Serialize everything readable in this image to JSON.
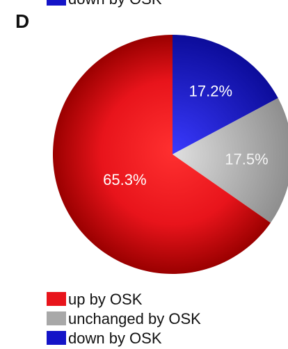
{
  "cropped_text": "down by OSK",
  "chart_data": {
    "type": "pie",
    "panel_label": "D",
    "series": [
      {
        "name": "up by OSK",
        "color": "#e8141b",
        "values": [
          65.3
        ]
      },
      {
        "name": "unchanged by OSK",
        "color": "#a8a8a8",
        "values": [
          17.5
        ]
      },
      {
        "name": "down by OSK",
        "color": "#1414c8",
        "values": [
          17.2
        ]
      }
    ],
    "value_labels": [
      "65.3%",
      "17.5%",
      "17.2%"
    ],
    "legend": "bottom-left"
  }
}
